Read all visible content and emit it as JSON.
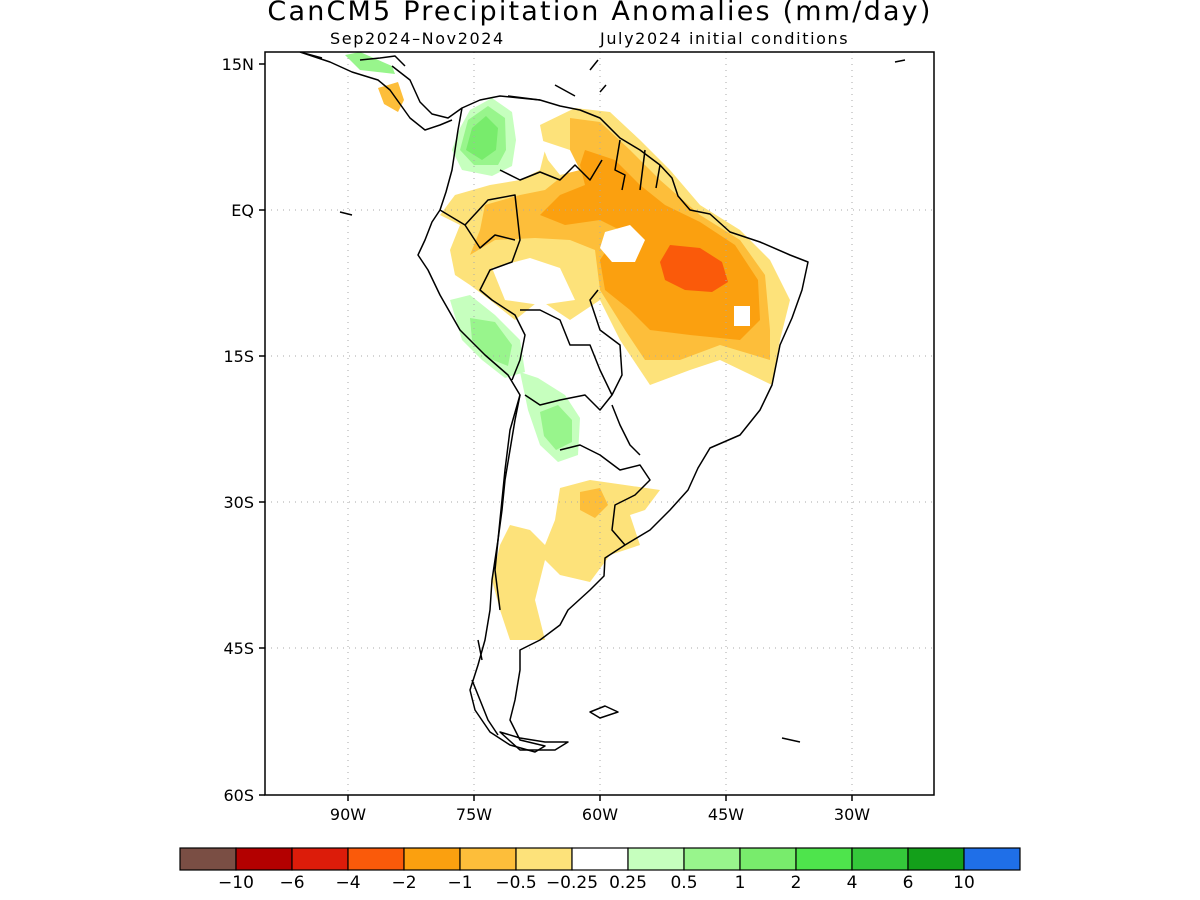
{
  "title": "CanCM5 Precipitation Anomalies (mm/day)",
  "subtitle_left": "Sep2024–Nov2024",
  "subtitle_right": "July2024 initial conditions",
  "axes": {
    "lat_ticks": [
      "15N",
      "EQ",
      "15S",
      "30S",
      "45S",
      "60S"
    ],
    "lon_ticks": [
      "90W",
      "75W",
      "60W",
      "45W",
      "30W"
    ],
    "lat_range": [
      -60,
      15
    ],
    "lon_range": [
      -100,
      -20
    ],
    "grid": "dotted"
  },
  "colorbar": {
    "labels": [
      "−10",
      "−6",
      "−4",
      "−2",
      "−1",
      "−0.5",
      "−0.25",
      "0.25",
      "0.5",
      "1",
      "2",
      "4",
      "6",
      "10"
    ],
    "colors": [
      "#7a4e44",
      "#b30000",
      "#dc1c0a",
      "#fa5a0a",
      "#fba00f",
      "#fdbe3a",
      "#fde27a",
      "#ffffff",
      "#c6ffbe",
      "#98f58c",
      "#78ec6c",
      "#4ee44c",
      "#34c83a",
      "#13a01a",
      "#1f6fe8"
    ]
  },
  "anomaly_regions": [
    {
      "name": "northeast-brazil-dry",
      "category": "-4 to -2"
    },
    {
      "name": "amazon-dry",
      "category": "-1 to -0.5"
    },
    {
      "name": "colombia-wet",
      "category": "0.5 to 2"
    },
    {
      "name": "andes-peru-wet",
      "category": "0.5 to 1"
    },
    {
      "name": "paraguay-wet",
      "category": "0.25 to 1"
    },
    {
      "name": "argentina-dry",
      "category": "-0.5 to -0.25"
    }
  ]
}
